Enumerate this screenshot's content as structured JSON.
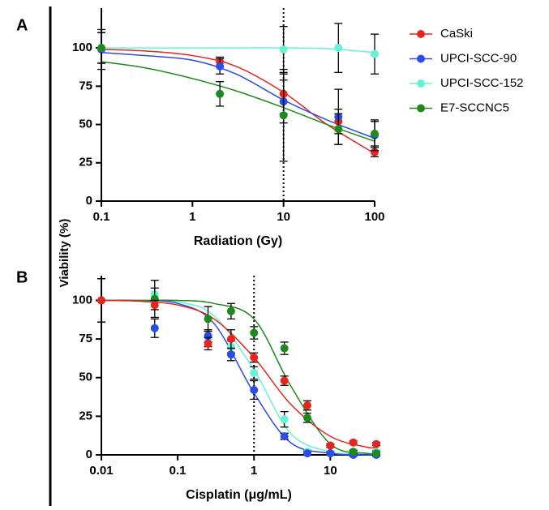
{
  "ylabel": "Viability (%)",
  "chart_data": [
    {
      "type": "scatter",
      "panel": "A",
      "xlabel": "Radiation (Gy)",
      "xscale": "log",
      "xlim": [
        0.1,
        100
      ],
      "xticks": [
        0.1,
        1,
        10,
        100
      ],
      "ylim": [
        0,
        126
      ],
      "yticks": [
        0,
        25,
        50,
        75,
        100
      ],
      "vline": 10,
      "legend": "upper right",
      "x": [
        0.1,
        2,
        10,
        40,
        100
      ],
      "fit_x": [
        0.1,
        0.3,
        1,
        3,
        10,
        30,
        100
      ],
      "series": [
        {
          "name": "CaSki",
          "color": "#e8241f",
          "values": [
            100,
            91,
            70,
            52,
            32
          ],
          "errors": [
            10,
            3,
            13,
            8,
            3
          ],
          "fit_values": [
            99,
            98,
            95,
            88,
            71,
            50,
            31
          ]
        },
        {
          "name": "UPCI-SCC-90",
          "color": "#2a4de8",
          "values": [
            99,
            88,
            65,
            55,
            43
          ],
          "errors": [
            13,
            5,
            14,
            18,
            10
          ],
          "fit_values": [
            97,
            95,
            92,
            83,
            66,
            53,
            41
          ]
        },
        {
          "name": "UPCI-SCC-152",
          "color": "#66f2d6",
          "values": [
            100,
            null,
            99,
            100,
            96
          ],
          "errors": [
            0,
            null,
            15,
            16,
            13
          ],
          "fit_values": [
            100,
            100,
            100,
            100,
            100,
            99.5,
            97
          ]
        },
        {
          "name": "E7-SCCNC5",
          "color": "#1e8a1e",
          "values": [
            100,
            70,
            56,
            47,
            44
          ],
          "errors": [
            10,
            8,
            30,
            10,
            8
          ],
          "fit_values": [
            91,
            87,
            80,
            72,
            61,
            50,
            39
          ]
        }
      ]
    },
    {
      "type": "scatter",
      "panel": "B",
      "xlabel": "Cisplatin (μg/mL)",
      "xscale": "log",
      "xlim": [
        0.01,
        40
      ],
      "xticks": [
        0.01,
        0.1,
        1,
        10
      ],
      "ylim": [
        0,
        116
      ],
      "yticks": [
        0,
        25,
        50,
        75,
        100
      ],
      "vline": 1,
      "x": [
        0.01,
        0.05,
        0.25,
        0.5,
        1,
        2.5,
        5,
        10,
        20,
        40
      ],
      "fit_x": [
        0.01,
        0.03,
        0.1,
        0.3,
        1,
        3,
        10,
        30,
        40
      ],
      "series": [
        {
          "color": "#66f2d6",
          "values": [
            100,
            104,
            75,
            70,
            53,
            23,
            2,
            1,
            2,
            2
          ],
          "errors": [
            14,
            4,
            5,
            4,
            4,
            5,
            1,
            1,
            1,
            1
          ],
          "fit_values": [
            100,
            100,
            99,
            90,
            55,
            14,
            2,
            1,
            1
          ]
        },
        {
          "color": "#2a4de8",
          "values": [
            100,
            82,
            77,
            65,
            42,
            12,
            1,
            1,
            0,
            0
          ],
          "errors": [
            14,
            6,
            4,
            4,
            6,
            2,
            1,
            1,
            1,
            1
          ],
          "fit_values": [
            100,
            100,
            98,
            85,
            40,
            8,
            1,
            0,
            0
          ]
        },
        {
          "color": "#1e8a1e",
          "values": [
            100,
            101,
            88,
            93,
            79,
            69,
            24,
            6,
            2,
            1
          ],
          "errors": [
            14,
            12,
            8,
            5,
            4,
            4,
            3,
            1,
            1,
            1
          ],
          "fit_values": [
            100,
            100,
            100,
            98,
            88,
            45,
            7,
            1,
            1
          ]
        },
        {
          "color": "#e8241f",
          "values": [
            100,
            97,
            72,
            75,
            63,
            48,
            32,
            6,
            8,
            7
          ],
          "errors": [
            14,
            3,
            4,
            6,
            3,
            3,
            3,
            1,
            1,
            1
          ],
          "fit_values": [
            100,
            99.5,
            97,
            88,
            63,
            33,
            12,
            5,
            5
          ]
        }
      ]
    }
  ]
}
